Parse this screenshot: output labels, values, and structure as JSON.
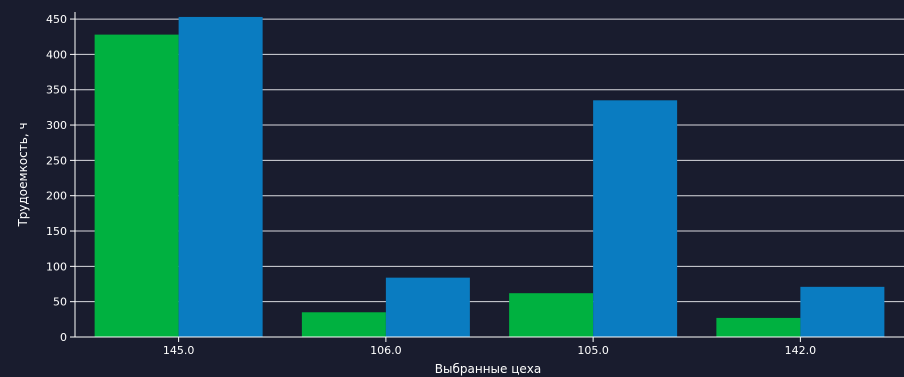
{
  "chart_data": {
    "type": "bar",
    "title": "",
    "xlabel": "Выбранные цеха",
    "ylabel": "Трудоемкость, ч",
    "categories": [
      "145.0",
      "106.0",
      "105.0",
      "142.0"
    ],
    "series": [
      {
        "values": [
          428,
          35,
          62,
          27
        ]
      },
      {
        "values": [
          453,
          84,
          335,
          71
        ]
      }
    ],
    "ylim": [
      0,
      460
    ],
    "yticks": [
      0,
      50,
      100,
      150,
      200,
      250,
      300,
      350,
      400,
      450
    ],
    "grid": true,
    "legend": "none"
  },
  "colors": {
    "background": "#ffffff",
    "plot_background": "#191c2e",
    "grid": "#d9d9de",
    "axis": "#ffffff",
    "series": [
      "#00b140",
      "#0a7cc1"
    ]
  }
}
